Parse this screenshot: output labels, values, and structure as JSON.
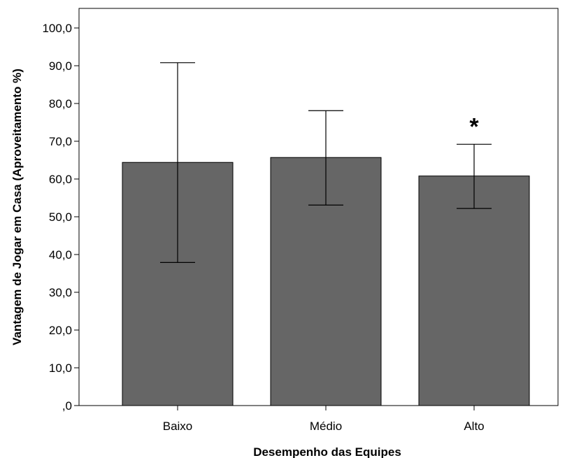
{
  "chart_data": {
    "type": "bar",
    "xlabel": "Desempenho das Equipes",
    "ylabel": "Vantagem de Jogar em Casa (Aproveitamento %)",
    "categories": [
      "Baixo",
      "Médio",
      "Alto"
    ],
    "values": [
      64.4,
      65.7,
      60.8
    ],
    "error_high": [
      90.8,
      78.1,
      69.2
    ],
    "error_low": [
      37.9,
      53.1,
      52.2
    ],
    "ylim": [
      0,
      105
    ],
    "yticks": [
      0,
      10,
      20,
      30,
      40,
      50,
      60,
      70,
      80,
      90,
      100
    ],
    "ytick_labels": [
      ",0",
      "10,0",
      "20,0",
      "30,0",
      "40,0",
      "50,0",
      "60,0",
      "70,0",
      "80,0",
      "90,0",
      "100,0"
    ],
    "annotations": [
      {
        "category": "Alto",
        "text": "*"
      }
    ],
    "bar_color": "#666666",
    "grid": false,
    "legend": "none"
  }
}
